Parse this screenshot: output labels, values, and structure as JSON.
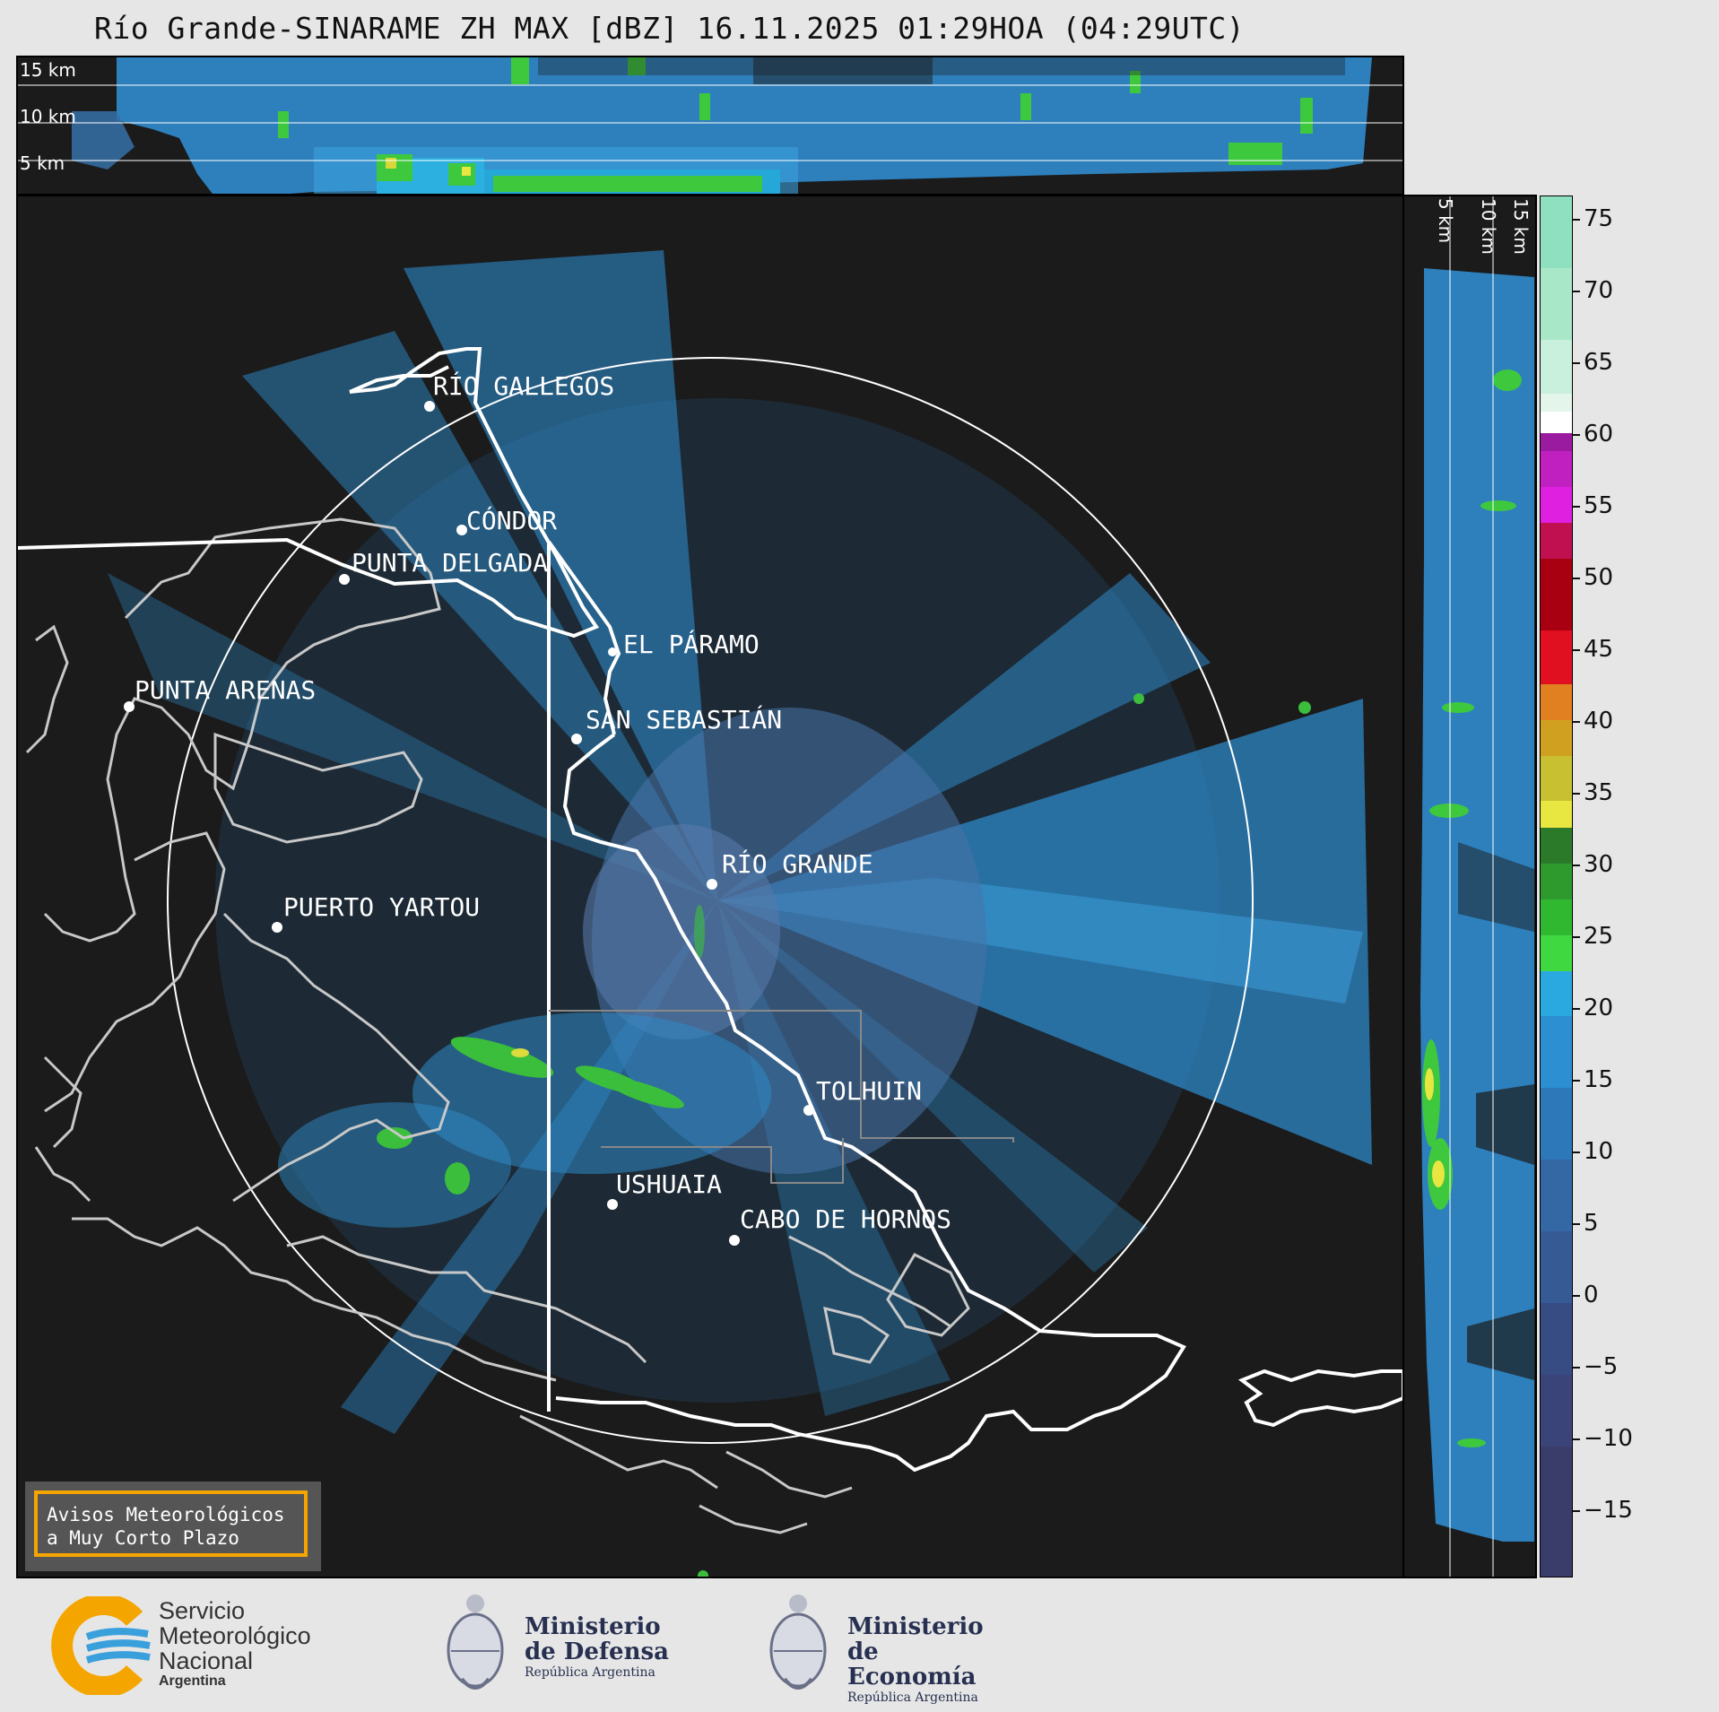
{
  "title": "Río Grande-SINARAME ZH MAX [dBZ] 16.11.2025 01:29HOA (04:29UTC)",
  "top_panel": {
    "height_labels": [
      "15 km",
      "10 km",
      "5 km"
    ]
  },
  "right_panel": {
    "height_labels": [
      "5 km",
      "10 km",
      "15 km"
    ]
  },
  "cities": [
    {
      "name": "RÍO GALLEGOS"
    },
    {
      "name": "CÓNDOR"
    },
    {
      "name": "PUNTA DELGADA"
    },
    {
      "name": "EL PÁRAMO"
    },
    {
      "name": "SAN SEBASTIÁN"
    },
    {
      "name": "PUNTA ARENAS"
    },
    {
      "name": "RÍO GRANDE"
    },
    {
      "name": "PUERTO YARTOU"
    },
    {
      "name": "TOLHUIN"
    },
    {
      "name": "USHUAIA"
    },
    {
      "name": "CABO DE HORNOS"
    }
  ],
  "colorbar": {
    "unit": "dBZ",
    "ticks": [
      "75",
      "70",
      "65",
      "60",
      "55",
      "50",
      "45",
      "40",
      "35",
      "30",
      "25",
      "20",
      "15",
      "10",
      "5",
      "0",
      "−5",
      "−10",
      "−15"
    ]
  },
  "badge": {
    "line1": "Avisos Meteorológicos",
    "line2": "a Muy Corto Plazo"
  },
  "logos": {
    "smn": {
      "line1": "Servicio",
      "line2": "Meteorológico",
      "line3": "Nacional",
      "line4": "Argentina"
    },
    "defensa": {
      "line1": "Ministerio",
      "line2": "de Defensa",
      "line3": "República Argentina"
    },
    "economia": {
      "line1": "Ministerio",
      "line2": "de Economía",
      "line3": "República Argentina"
    }
  },
  "colors": {
    "background": "#1b1b1b",
    "echo": "#2b8fd1",
    "accent": "#f5a500"
  }
}
